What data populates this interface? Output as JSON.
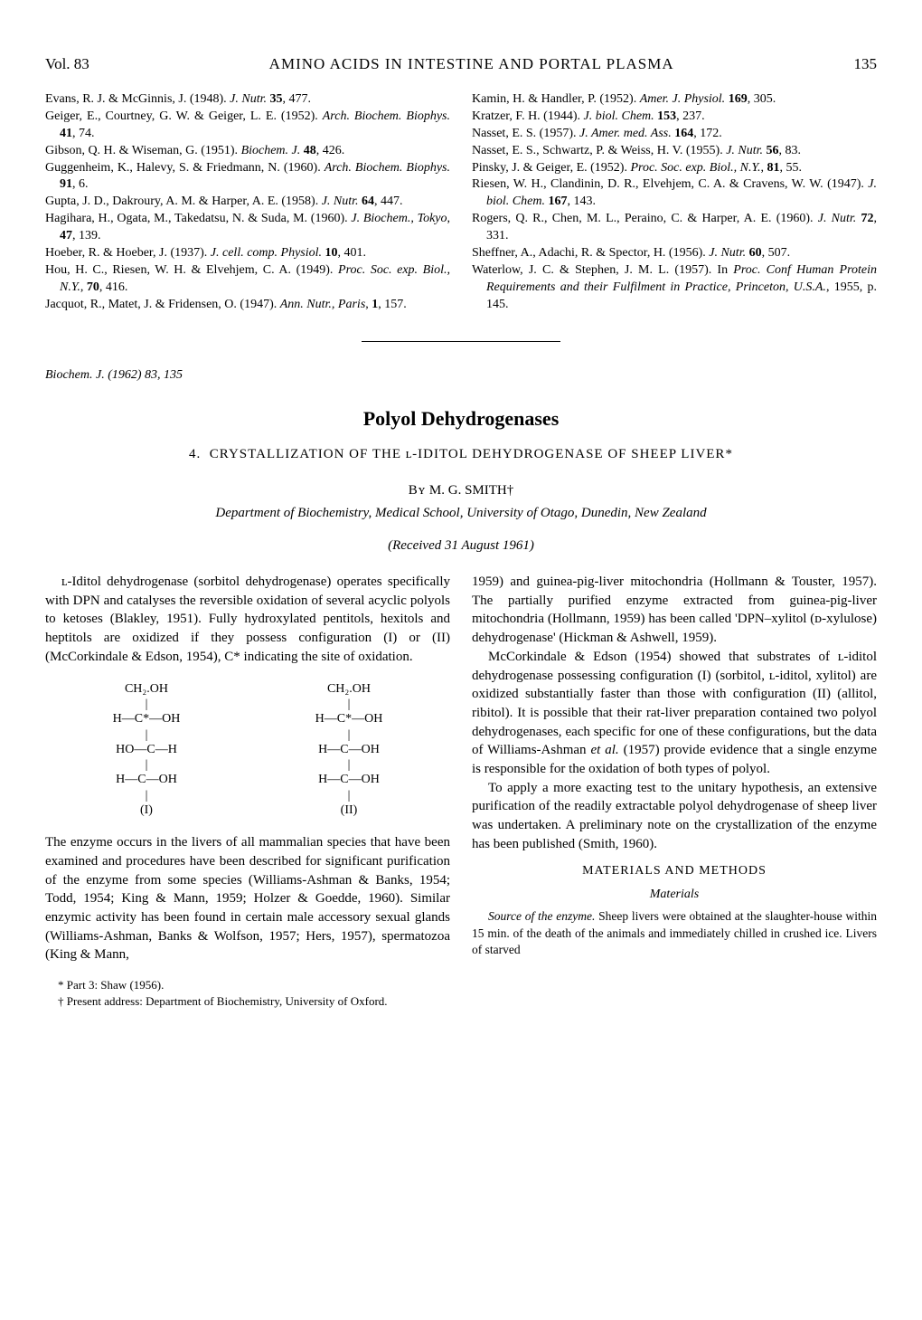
{
  "header": {
    "volume": "Vol. 83",
    "running_title": "AMINO ACIDS IN INTESTINE AND PORTAL PLASMA",
    "page_number": "135"
  },
  "references": {
    "left_column": [
      {
        "text": "Evans, R. J. & McGinnis, J. (1948). <i>J. Nutr.</i> <b>35</b>, 477."
      },
      {
        "text": "Geiger, E., Courtney, G. W. & Geiger, L. E. (1952). <i>Arch. Biochem. Biophys.</i> <b>41</b>, 74."
      },
      {
        "text": "Gibson, Q. H. & Wiseman, G. (1951). <i>Biochem. J.</i> <b>48</b>, 426."
      },
      {
        "text": "Guggenheim, K., Halevy, S. & Friedmann, N. (1960). <i>Arch. Biochem. Biophys.</i> <b>91</b>, 6."
      },
      {
        "text": "Gupta, J. D., Dakroury, A. M. & Harper, A. E. (1958). <i>J. Nutr.</i> <b>64</b>, 447."
      },
      {
        "text": "Hagihara, H., Ogata, M., Takedatsu, N. & Suda, M. (1960). <i>J. Biochem., Tokyo</i>, <b>47</b>, 139."
      },
      {
        "text": "Hoeber, R. & Hoeber, J. (1937). <i>J. cell. comp. Physiol.</i> <b>10</b>, 401."
      },
      {
        "text": "Hou, H. C., Riesen, W. H. & Elvehjem, C. A. (1949). <i>Proc. Soc. exp. Biol., N.Y.</i>, <b>70</b>, 416."
      },
      {
        "text": "Jacquot, R., Matet, J. & Fridensen, O. (1947). <i>Ann. Nutr., Paris</i>, <b>1</b>, 157."
      }
    ],
    "right_column": [
      {
        "text": "Kamin, H. & Handler, P. (1952). <i>Amer. J. Physiol.</i> <b>169</b>, 305."
      },
      {
        "text": "Kratzer, F. H. (1944). <i>J. biol. Chem.</i> <b>153</b>, 237."
      },
      {
        "text": "Nasset, E. S. (1957). <i>J. Amer. med. Ass.</i> <b>164</b>, 172."
      },
      {
        "text": "Nasset, E. S., Schwartz, P. & Weiss, H. V. (1955). <i>J. Nutr.</i> <b>56</b>, 83."
      },
      {
        "text": "Pinsky, J. & Geiger, E. (1952). <i>Proc. Soc. exp. Biol., N.Y.</i>, <b>81</b>, 55."
      },
      {
        "text": "Riesen, W. H., Clandinin, D. R., Elvehjem, C. A. & Cravens, W. W. (1947). <i>J. biol. Chem.</i> <b>167</b>, 143."
      },
      {
        "text": "Rogers, Q. R., Chen, M. L., Peraino, C. & Harper, A. E. (1960). <i>J. Nutr.</i> <b>72</b>, 331."
      },
      {
        "text": "Sheffner, A., Adachi, R. & Spector, H. (1956). <i>J. Nutr.</i> <b>60</b>, 507."
      },
      {
        "text": "Waterlow, J. C. & Stephen, J. M. L. (1957). In <i>Proc. Conf Human Protein Requirements and their Fulfilment in Practice, Princeton, U.S.A.</i>, 1955, p. 145."
      }
    ]
  },
  "journal_ref": "Biochem. J. (1962) 83, 135",
  "article": {
    "title": "Polyol Dehydrogenases",
    "subtitle_number": "4.",
    "subtitle": "CRYSTALLIZATION OF THE ʟ-IDITOL DEHYDROGENASE OF SHEEP LIVER*",
    "author_prefix": "Bʏ",
    "author": "M. G. SMITH†",
    "affiliation": "Department of Biochemistry, Medical School, University of Otago, Dunedin, New Zealand",
    "received": "(Received 31 August 1961)"
  },
  "body": {
    "left": {
      "para1": "ʟ-Iditol dehydrogenase (sorbitol dehydrogenase) operates specifically with DPN and catalyses the reversible oxidation of several acyclic polyols to ketoses (Blakley, 1951). Fully hydroxylated pentitols, hexitols and heptitols are oxidized if they possess configuration (I) or (II) (McCorkindale & Edson, 1954), C* indicating the site of oxidation.",
      "diagram": {
        "col1": {
          "line1": "CH₂.OH",
          "line2": "H—C*—OH",
          "line3": "HO—C—H",
          "line4": "H—C—OH",
          "line5": "|",
          "label": "(I)"
        },
        "col2": {
          "line1": "CH₂.OH",
          "line2": "H—C*—OH",
          "line3": "H—C—OH",
          "line4": "H—C—OH",
          "line5": "|",
          "label": "(II)"
        }
      },
      "para2": "The enzyme occurs in the livers of all mammalian species that have been examined and procedures have been described for significant purification of the enzyme from some species (Williams-Ashman & Banks, 1954; Todd, 1954; King & Mann, 1959; Holzer & Goedde, 1960). Similar enzymic activity has been found in certain male accessory sexual glands (Williams-Ashman, Banks & Wolfson, 1957; Hers, 1957), spermatozoa (King & Mann,",
      "footnote1": "* Part 3: Shaw (1956).",
      "footnote2": "† Present address: Department of Biochemistry, University of Oxford."
    },
    "right": {
      "para1": "1959) and guinea-pig-liver mitochondria (Hollmann & Touster, 1957). The partially purified enzyme extracted from guinea-pig-liver mitochondria (Hollmann, 1959) has been called 'DPN–xylitol (ᴅ-xylulose) dehydrogenase' (Hickman & Ashwell, 1959).",
      "para2": "McCorkindale & Edson (1954) showed that substrates of ʟ-iditol dehydrogenase possessing configuration (I) (sorbitol, ʟ-iditol, xylitol) are oxidized substantially faster than those with configuration (II) (allitol, ribitol). It is possible that their rat-liver preparation contained two polyol dehydrogenases, each specific for one of these configurations, but the data of Williams-Ashman et al. (1957) provide evidence that a single enzyme is responsible for the oxidation of both types of polyol.",
      "para3": "To apply a more exacting test to the unitary hypothesis, an extensive purification of the readily extractable polyol dehydrogenase of sheep liver was undertaken. A preliminary note on the crystallization of the enzyme has been published (Smith, 1960).",
      "section_heading": "MATERIALS AND METHODS",
      "subsection_heading": "Materials",
      "para4_label": "Source of the enzyme.",
      "para4": "Sheep livers were obtained at the slaughter-house within 15 min. of the death of the animals and immediately chilled in crushed ice. Livers of starved"
    }
  }
}
